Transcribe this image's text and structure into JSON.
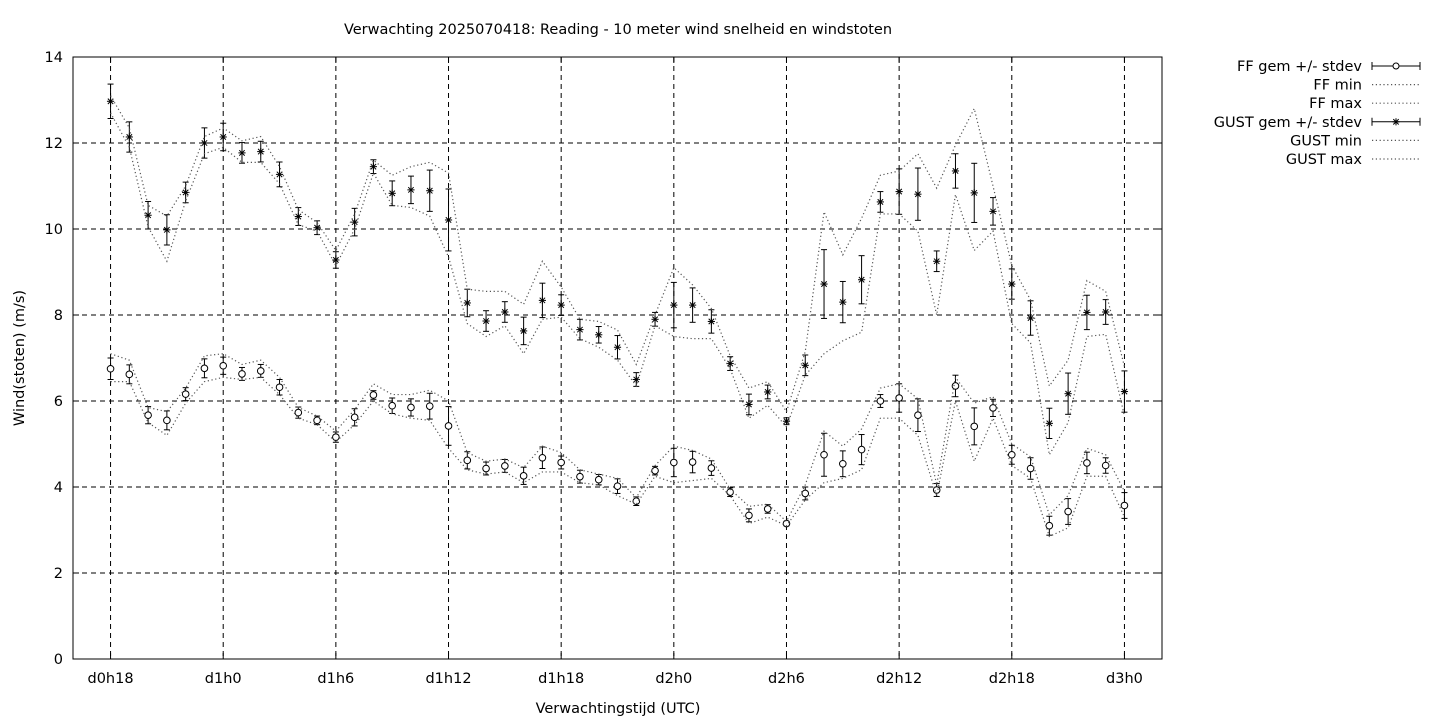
{
  "chart_data": {
    "type": "line",
    "title": "Verwachting 2025070418: Reading - 10 meter wind snelheid en windstoten",
    "xlabel": "Verwachtingstijd (UTC)",
    "ylabel": "Wind(stoten) (m/s)",
    "x_unit": "hours since d0h0",
    "x_range": [
      16,
      74
    ],
    "ylim": [
      0,
      14
    ],
    "y_ticks": [
      0,
      2,
      4,
      6,
      8,
      10,
      12,
      14
    ],
    "x_ticks": [
      {
        "x": 18,
        "label": "d0h18"
      },
      {
        "x": 24,
        "label": "d1h0"
      },
      {
        "x": 30,
        "label": "d1h6"
      },
      {
        "x": 36,
        "label": "d1h12"
      },
      {
        "x": 42,
        "label": "d1h18"
      },
      {
        "x": 48,
        "label": "d2h0"
      },
      {
        "x": 54,
        "label": "d2h6"
      },
      {
        "x": 60,
        "label": "d2h12"
      },
      {
        "x": 66,
        "label": "d2h18"
      },
      {
        "x": 72,
        "label": "d3h0"
      }
    ],
    "grid": true,
    "legend_position": "outside-right",
    "x": [
      18,
      19,
      20,
      21,
      22,
      23,
      24,
      25,
      26,
      27,
      28,
      29,
      30,
      31,
      32,
      33,
      34,
      35,
      36,
      37,
      38,
      39,
      40,
      41,
      42,
      43,
      44,
      45,
      46,
      47,
      48,
      49,
      50,
      51,
      52,
      53,
      54,
      55,
      56,
      57,
      58,
      59,
      60,
      61,
      62,
      63,
      64,
      65,
      66,
      67,
      68,
      69,
      70,
      71,
      72
    ],
    "series": [
      {
        "name": "FF gem +/- stdev",
        "marker": "circle",
        "values": [
          6.75,
          6.62,
          5.67,
          5.55,
          6.16,
          6.76,
          6.82,
          6.63,
          6.7,
          6.32,
          5.73,
          5.55,
          5.16,
          5.62,
          6.14,
          5.89,
          5.85,
          5.88,
          5.42,
          4.62,
          4.43,
          4.49,
          4.26,
          4.68,
          4.57,
          4.24,
          4.17,
          4.02,
          3.67,
          4.38,
          4.57,
          4.58,
          4.44,
          3.88,
          3.34,
          3.49,
          3.15,
          3.85,
          4.75,
          4.54,
          4.87,
          6.0,
          6.07,
          5.67,
          3.93,
          6.35,
          5.41,
          5.84,
          4.75,
          4.43,
          3.1,
          3.43,
          4.56,
          4.5,
          3.57
        ],
        "stdev": [
          0.25,
          0.22,
          0.2,
          0.22,
          0.15,
          0.22,
          0.2,
          0.15,
          0.15,
          0.18,
          0.13,
          0.1,
          0.12,
          0.2,
          0.1,
          0.18,
          0.2,
          0.3,
          0.45,
          0.2,
          0.15,
          0.15,
          0.2,
          0.25,
          0.15,
          0.15,
          0.12,
          0.17,
          0.1,
          0.1,
          0.33,
          0.25,
          0.17,
          0.1,
          0.15,
          0.1,
          0.05,
          0.15,
          0.5,
          0.3,
          0.35,
          0.15,
          0.33,
          0.38,
          0.15,
          0.25,
          0.43,
          0.2,
          0.22,
          0.25,
          0.22,
          0.3,
          0.25,
          0.18,
          0.3
        ]
      },
      {
        "name": "FF min",
        "style": "dotted",
        "values": [
          6.45,
          6.45,
          5.5,
          5.2,
          5.95,
          6.45,
          6.55,
          6.5,
          6.55,
          6.15,
          5.6,
          5.45,
          5.05,
          5.45,
          6.0,
          5.7,
          5.6,
          5.55,
          4.9,
          4.4,
          4.3,
          4.35,
          4.1,
          4.35,
          4.35,
          4.1,
          4.05,
          3.8,
          3.6,
          4.25,
          4.1,
          4.15,
          4.2,
          3.8,
          3.15,
          3.3,
          3.1,
          3.7,
          4.1,
          4.2,
          4.4,
          5.6,
          5.6,
          5.2,
          3.8,
          6.0,
          4.6,
          5.6,
          4.5,
          4.2,
          2.85,
          3.05,
          4.25,
          4.25,
          3.3
        ]
      },
      {
        "name": "FF max",
        "style": "dotted",
        "values": [
          7.1,
          6.95,
          5.85,
          5.75,
          6.3,
          7.05,
          7.1,
          6.85,
          6.95,
          6.55,
          5.85,
          5.65,
          5.3,
          5.8,
          6.4,
          6.15,
          6.15,
          6.25,
          6.0,
          4.8,
          4.6,
          4.65,
          4.45,
          4.95,
          4.8,
          4.4,
          4.3,
          4.2,
          3.75,
          4.5,
          4.95,
          4.85,
          4.65,
          3.95,
          3.55,
          3.6,
          3.2,
          4.05,
          5.3,
          4.95,
          5.35,
          6.3,
          6.4,
          6.05,
          4.05,
          6.55,
          5.95,
          6.1,
          5.0,
          4.7,
          3.35,
          3.8,
          4.9,
          4.75,
          3.9
        ]
      },
      {
        "name": "GUST gem +/- stdev",
        "marker": "asterisk",
        "values": [
          12.97,
          12.14,
          10.32,
          9.98,
          10.85,
          12.0,
          12.14,
          11.77,
          11.8,
          11.27,
          10.29,
          10.03,
          9.28,
          10.16,
          11.45,
          10.83,
          10.91,
          10.89,
          10.21,
          8.28,
          7.86,
          8.07,
          7.63,
          8.34,
          8.23,
          7.66,
          7.54,
          7.25,
          6.5,
          7.9,
          8.23,
          8.23,
          7.85,
          6.87,
          5.92,
          6.21,
          5.53,
          6.83,
          8.72,
          8.3,
          8.82,
          10.63,
          10.87,
          10.81,
          9.25,
          11.35,
          10.84,
          10.41,
          8.72,
          7.93,
          5.48,
          6.17,
          8.06,
          8.07,
          6.22
        ]
      },
      {
        "name": "GUST min",
        "style": "dotted",
        "values": [
          12.7,
          11.9,
          10.05,
          9.25,
          10.65,
          11.75,
          11.9,
          11.55,
          11.55,
          11.05,
          10.1,
          9.95,
          9.15,
          10.0,
          11.3,
          10.55,
          10.5,
          10.3,
          9.35,
          7.8,
          7.5,
          7.75,
          7.1,
          7.9,
          7.95,
          7.45,
          7.25,
          6.95,
          6.35,
          7.75,
          7.5,
          7.45,
          7.45,
          6.75,
          5.6,
          5.9,
          5.4,
          6.6,
          7.1,
          7.4,
          7.6,
          10.35,
          10.35,
          9.95,
          8.0,
          10.8,
          9.5,
          9.95,
          7.8,
          7.35,
          4.75,
          5.5,
          7.5,
          7.55,
          5.65
        ]
      },
      {
        "name": "GUST max",
        "style": "dotted",
        "values": [
          13.1,
          12.35,
          10.55,
          10.3,
          11.0,
          12.15,
          12.35,
          12.05,
          12.15,
          11.45,
          10.45,
          10.15,
          9.5,
          10.35,
          11.6,
          11.25,
          11.45,
          11.55,
          11.3,
          8.6,
          8.55,
          8.55,
          8.25,
          9.25,
          8.65,
          7.9,
          7.85,
          7.65,
          6.85,
          8.0,
          9.1,
          8.7,
          8.15,
          7.05,
          6.3,
          6.45,
          5.75,
          7.15,
          10.4,
          9.4,
          10.25,
          11.25,
          11.35,
          11.75,
          10.95,
          11.95,
          12.8,
          11.0,
          9.15,
          8.35,
          6.35,
          6.95,
          8.8,
          8.55,
          6.8
        ]
      }
    ]
  }
}
